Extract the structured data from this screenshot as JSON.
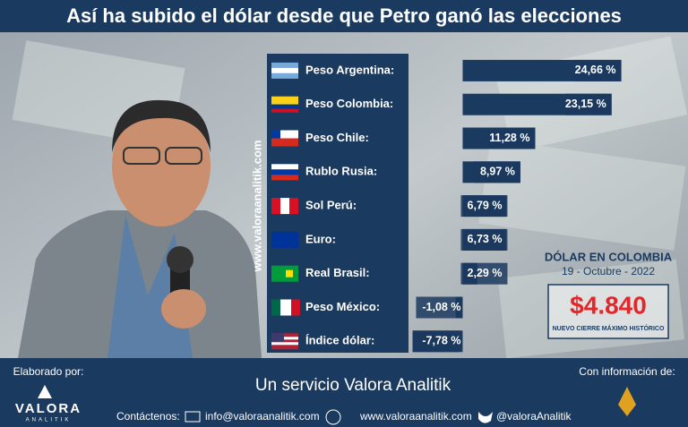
{
  "chart_data": {
    "type": "bar",
    "title": "Así ha subido el dólar desde que Petro ganó las elecciones",
    "categories": [
      "Peso Argentina:",
      "Peso Colombia:",
      "Peso Chile:",
      "Rublo Rusia:",
      "Sol Perú:",
      "Euro:",
      "Real Brasil:",
      "Peso México:",
      "Índice dólar:"
    ],
    "values": [
      24.66,
      23.15,
      11.28,
      8.97,
      6.79,
      6.73,
      2.29,
      -1.08,
      -7.78
    ],
    "value_labels": [
      "24,66 %",
      "23,15 %",
      "11,28 %",
      "8,97 %",
      "6,79 %",
      "6,73 %",
      "2,29 %",
      "-1,08 %",
      "-7,78 %"
    ],
    "color": "#1b3a5f",
    "xlim": [
      -8,
      25
    ]
  },
  "watermark": "www.valoraanalitik.com",
  "infobox": {
    "title": "DÓLAR EN COLOMBIA",
    "date": "19 - Octubre - 2022",
    "price": "$4.840",
    "note": "NUEVO CIERRE MÁXIMO HISTÓRICO"
  },
  "footer": {
    "made_by": "Elaborado por:",
    "brand": "VALORA",
    "brand_sub": "ANALITIK",
    "service": "Un servicio Valora Analitik",
    "contact": "Contáctenos:",
    "email": "info@valoraanalitik.com",
    "web": "www.valoraanalitik.com",
    "twitter": "@valoraAnalitik",
    "source": "Con información de:"
  }
}
